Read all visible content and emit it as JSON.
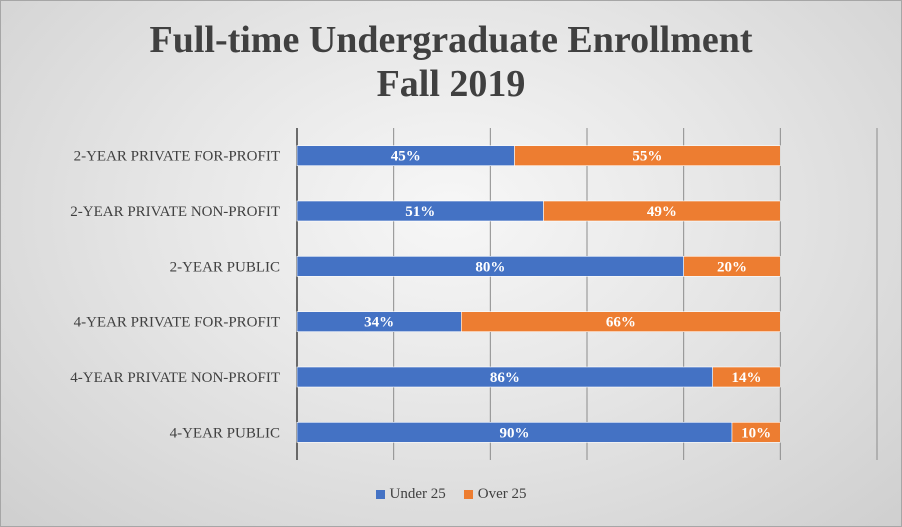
{
  "chart_data": {
    "type": "bar",
    "orientation": "horizontal",
    "stacked": true,
    "title": [
      "Full-time Undergraduate Enrollment",
      "Fall 2019"
    ],
    "categories": [
      "2-YEAR PRIVATE FOR-PROFIT",
      "2-YEAR PRIVATE NON-PROFIT",
      "2-YEAR PUBLIC",
      "4-YEAR PRIVATE FOR-PROFIT",
      "4-YEAR PRIVATE NON-PROFIT",
      "4-YEAR PUBLIC"
    ],
    "series": [
      {
        "name": "Under 25",
        "color": "#4472c4",
        "values": [
          45,
          51,
          80,
          34,
          86,
          90
        ],
        "labels": [
          "45%",
          "51%",
          "80%",
          "34%",
          "86%",
          "90%"
        ]
      },
      {
        "name": "Over 25",
        "color": "#ed7d31",
        "values": [
          55,
          49,
          20,
          66,
          14,
          10
        ],
        "labels": [
          "55%",
          "49%",
          "20%",
          "66%",
          "14%",
          "10%"
        ]
      }
    ],
    "xlim": [
      0,
      120
    ],
    "vertical_gridlines": true,
    "legend_position": "bottom"
  }
}
